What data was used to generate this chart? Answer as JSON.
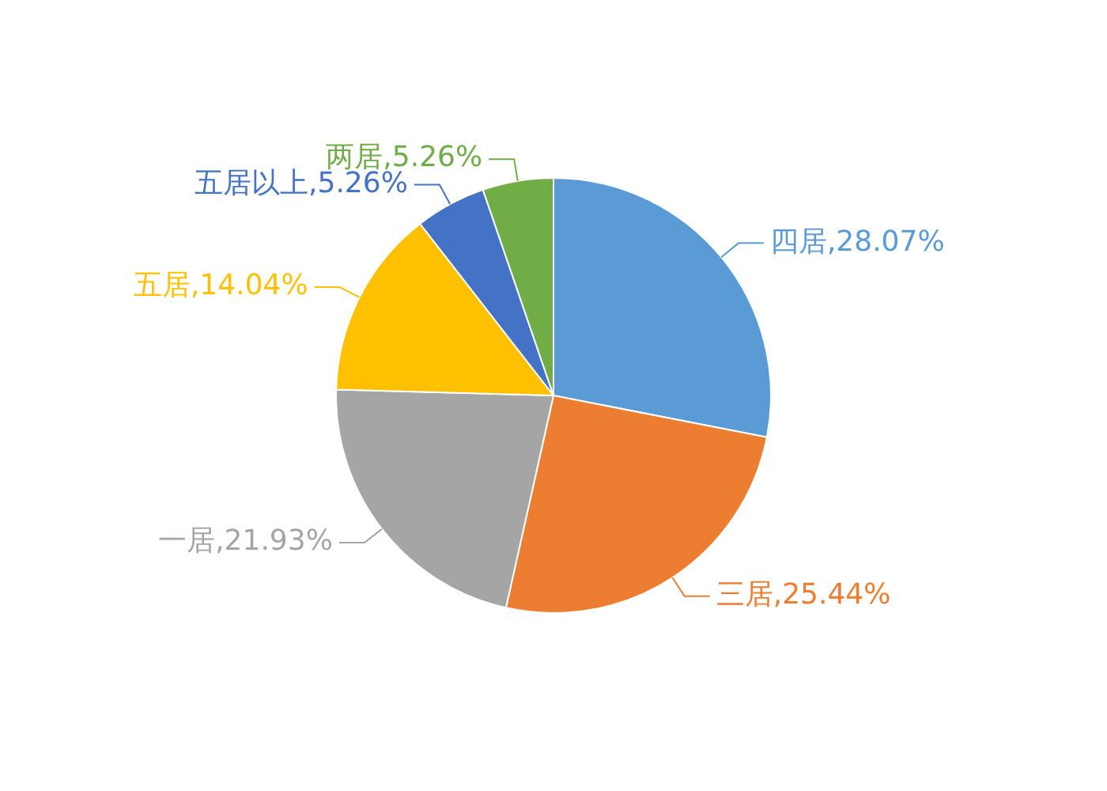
{
  "chart_data": {
    "type": "pie",
    "categories": [
      "四居",
      "三居",
      "一居",
      "五居",
      "五居以上",
      "两居"
    ],
    "values": [
      28.07,
      25.44,
      21.93,
      14.04,
      5.26,
      5.26
    ],
    "value_labels": [
      ",28.07%",
      ",25.44%",
      ",21.93%",
      ",14.04%",
      ",5.26%",
      ",5.26%"
    ],
    "colors": [
      "#5b9bd5",
      "#ed7d31",
      "#a5a5a5",
      "#ffc000",
      "#4472c4",
      "#70ad47"
    ],
    "legend": false
  }
}
